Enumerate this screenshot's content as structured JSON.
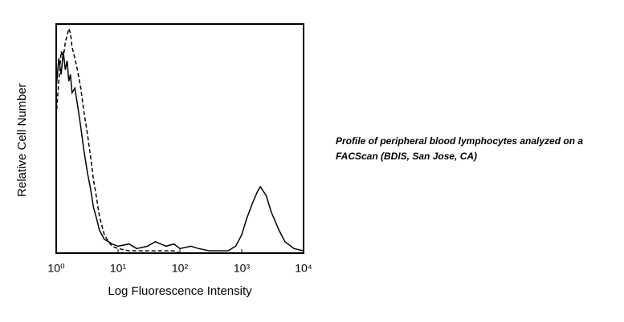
{
  "chart_data": {
    "type": "line",
    "xlabel": "Log Fluorescence Intensity",
    "ylabel": "Relative Cell Number",
    "annotation": [
      "Profile of peripheral blood lymphocytes analyzed on a",
      "FACScan (BDIS, San Jose, CA)"
    ],
    "xscale": "log",
    "xlim": [
      1,
      10000
    ],
    "ylim": [
      0,
      100
    ],
    "xticks": [
      {
        "value": 1,
        "label": "10⁰"
      },
      {
        "value": 10,
        "label": "10¹"
      },
      {
        "value": 100,
        "label": "10²"
      },
      {
        "value": 1000,
        "label": "10³"
      },
      {
        "value": 10000,
        "label": "10⁴"
      }
    ],
    "x": [
      1,
      1.1,
      1.2,
      1.3,
      1.4,
      1.5,
      1.6,
      1.7,
      1.8,
      2,
      2.2,
      2.5,
      2.8,
      3.2,
      3.6,
      4,
      4.5,
      5,
      6,
      7,
      8,
      10,
      15,
      20,
      30,
      40,
      60,
      80,
      100,
      150,
      200,
      300,
      400,
      600,
      800,
      1000,
      1200,
      1500,
      1800,
      2000,
      2500,
      3000,
      4000,
      5000,
      7000,
      10000
    ],
    "series": [
      {
        "color": "#000000",
        "dash": "solid",
        "values": [
          72,
          85,
          78,
          88,
          80,
          84,
          75,
          78,
          70,
          72,
          65,
          55,
          45,
          35,
          28,
          20,
          15,
          10,
          6,
          5,
          4,
          3,
          4,
          2,
          3,
          5,
          3,
          4,
          2,
          3,
          2,
          1,
          1,
          1,
          3,
          8,
          15,
          22,
          27,
          29,
          25,
          18,
          10,
          5,
          2,
          1
        ]
      },
      {
        "color": "#000000",
        "dash": "dashed",
        "values": [
          60,
          75,
          88,
          85,
          92,
          95,
          98,
          96,
          90,
          85,
          80,
          72,
          62,
          52,
          42,
          32,
          24,
          16,
          8,
          5,
          3,
          2,
          1,
          1,
          1,
          1,
          1,
          1,
          0,
          0,
          null,
          null,
          null,
          null,
          null,
          null,
          null,
          null,
          null,
          null,
          null,
          null,
          null,
          null,
          null,
          null
        ]
      }
    ]
  }
}
